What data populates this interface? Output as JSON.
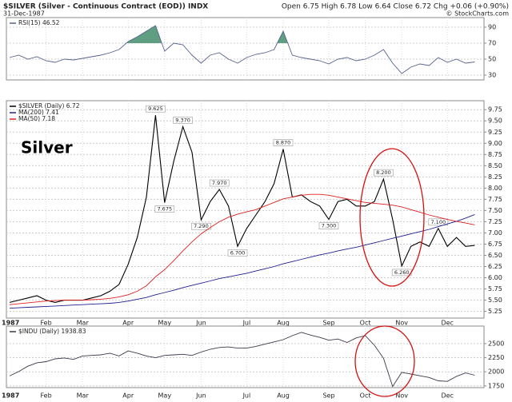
{
  "header": {
    "title": "$SILVER (Silver - Continuous Contract (EOD)) INDX",
    "date": "31-Dec-1987",
    "quote": "Open 6.75 High 6.78 Low 6.64 Close 6.72 Chg +0.06 (+0.90%)",
    "credit": "© StockCharts.com"
  },
  "chart_data": [
    {
      "type": "line",
      "ylim": [
        24,
        102
      ],
      "yticks": [
        90,
        70,
        50,
        30
      ],
      "grid": true,
      "shade_above": 70,
      "shade_color": "#5f9e80",
      "series": [
        {
          "name": "RSI(15) 46.52",
          "color": "#56638f",
          "values": [
            52,
            55,
            50,
            53,
            48,
            46,
            50,
            49,
            51,
            53,
            55,
            58,
            62,
            72,
            78,
            85,
            92,
            60,
            70,
            68,
            55,
            45,
            55,
            58,
            50,
            45,
            52,
            56,
            58,
            62,
            85,
            55,
            52,
            50,
            48,
            44,
            50,
            52,
            48,
            50,
            55,
            62,
            45,
            32,
            40,
            44,
            42,
            52,
            46,
            50,
            45,
            46.52
          ]
        }
      ]
    },
    {
      "type": "line",
      "ylim": [
        5.1,
        9.95
      ],
      "grid": true,
      "annotation": "Silver",
      "yticks": [
        {
          "value": 9.75,
          "label": "9.75"
        },
        {
          "value": 9.5,
          "label": "9.50"
        },
        9.25,
        {
          "value": 9,
          "label": "9.00"
        },
        8.75,
        {
          "value": 8.5,
          "label": "8.50"
        },
        8.25,
        {
          "value": 8,
          "label": "8.00"
        },
        7.75,
        {
          "value": 7.5,
          "label": "7.50"
        },
        7.25,
        {
          "value": 7,
          "label": "7.00"
        },
        6.75,
        {
          "value": 6.5,
          "label": "6.50"
        },
        6.25,
        {
          "value": 6,
          "label": "6.00"
        },
        5.75,
        {
          "value": 5.5,
          "label": "5.50"
        },
        5.25
      ],
      "categories": [
        "1987",
        null,
        null,
        null,
        "Feb",
        null,
        null,
        null,
        "Mar",
        null,
        null,
        null,
        null,
        "Apr",
        null,
        null,
        null,
        "May",
        null,
        null,
        null,
        "Jun",
        null,
        null,
        null,
        null,
        "Jul",
        null,
        null,
        null,
        "Aug",
        null,
        null,
        null,
        null,
        "Sep",
        null,
        null,
        null,
        "Oct",
        null,
        null,
        null,
        "Nov",
        null,
        null,
        null,
        null,
        "Dec",
        null,
        null,
        null
      ],
      "series": [
        {
          "name": "$SILVER (Daily) 6.72",
          "color": "#000000",
          "values": [
            5.45,
            5.5,
            5.55,
            5.6,
            5.5,
            5.45,
            5.5,
            5.5,
            5.5,
            5.55,
            5.6,
            5.7,
            5.85,
            6.3,
            6.9,
            7.8,
            9.625,
            7.675,
            8.6,
            9.37,
            8.8,
            7.29,
            7.7,
            7.97,
            7.6,
            6.7,
            7.1,
            7.4,
            7.7,
            8.1,
            8.87,
            7.8,
            7.85,
            7.7,
            7.6,
            7.3,
            7.7,
            7.75,
            7.6,
            7.6,
            7.7,
            8.2,
            7.3,
            6.26,
            6.7,
            6.8,
            6.7,
            7.1,
            6.7,
            6.9,
            6.7,
            6.72
          ],
          "value_labels": [
            null,
            null,
            null,
            null,
            null,
            null,
            null,
            null,
            null,
            null,
            null,
            null,
            null,
            null,
            null,
            null,
            "9.625",
            "7.675",
            null,
            "9.370",
            null,
            "7.290",
            null,
            "7.970",
            null,
            "6.700",
            null,
            null,
            null,
            null,
            "8.870",
            null,
            null,
            null,
            null,
            "7.300",
            null,
            null,
            null,
            null,
            null,
            "8.200",
            null,
            "6.260",
            null,
            null,
            null,
            "7.100",
            null,
            null,
            null,
            null
          ]
        },
        {
          "name": "MA(200) 7.41",
          "color": "#1f1f8f",
          "values": [
            5.32,
            5.33,
            5.34,
            5.35,
            5.36,
            5.37,
            5.38,
            5.39,
            5.4,
            5.41,
            5.42,
            5.43,
            5.45,
            5.48,
            5.52,
            5.56,
            5.62,
            5.67,
            5.72,
            5.78,
            5.83,
            5.88,
            5.93,
            5.98,
            6.02,
            6.06,
            6.1,
            6.15,
            6.2,
            6.25,
            6.31,
            6.36,
            6.41,
            6.46,
            6.51,
            6.55,
            6.6,
            6.64,
            6.68,
            6.73,
            6.78,
            6.83,
            6.88,
            6.93,
            6.98,
            7.03,
            7.08,
            7.14,
            7.2,
            7.26,
            7.33,
            7.41
          ]
        },
        {
          "name": "MA(50) 7.18",
          "color": "#e02020",
          "values": [
            5.4,
            5.42,
            5.44,
            5.46,
            5.48,
            5.49,
            5.5,
            5.5,
            5.5,
            5.51,
            5.52,
            5.54,
            5.57,
            5.62,
            5.7,
            5.82,
            6.02,
            6.18,
            6.38,
            6.6,
            6.8,
            6.98,
            7.12,
            7.25,
            7.35,
            7.42,
            7.47,
            7.52,
            7.6,
            7.68,
            7.76,
            7.8,
            7.84,
            7.86,
            7.86,
            7.84,
            7.8,
            7.76,
            7.72,
            7.68,
            7.66,
            7.64,
            7.62,
            7.58,
            7.52,
            7.46,
            7.4,
            7.35,
            7.3,
            7.26,
            7.22,
            7.18
          ]
        }
      ]
    },
    {
      "type": "line",
      "ylim": [
        1720,
        2810
      ],
      "yticks": [
        2500,
        2250,
        2000,
        1750
      ],
      "grid": true,
      "categories": [
        "1987",
        null,
        null,
        null,
        "Feb",
        null,
        null,
        null,
        "Mar",
        null,
        null,
        null,
        null,
        "Apr",
        null,
        null,
        null,
        "May",
        null,
        null,
        null,
        "Jun",
        null,
        null,
        null,
        null,
        "Jul",
        null,
        null,
        null,
        "Aug",
        null,
        null,
        null,
        null,
        "Sep",
        null,
        null,
        null,
        "Oct",
        null,
        null,
        null,
        "Nov",
        null,
        null,
        null,
        null,
        "Dec",
        null,
        null,
        null
      ],
      "series": [
        {
          "name": "$INDU (Daily) 1938.83",
          "color": "#3a3a4a",
          "values": [
            1927,
            2005,
            2100,
            2160,
            2180,
            2230,
            2245,
            2220,
            2280,
            2290,
            2300,
            2330,
            2280,
            2370,
            2330,
            2280,
            2250,
            2290,
            2300,
            2310,
            2290,
            2350,
            2400,
            2430,
            2440,
            2420,
            2420,
            2450,
            2490,
            2530,
            2570,
            2640,
            2700,
            2650,
            2610,
            2560,
            2580,
            2520,
            2600,
            2640,
            2470,
            2240,
            1740,
            1990,
            1960,
            1930,
            1900,
            1840,
            1830,
            1920,
            1980,
            1938.83
          ]
        }
      ]
    }
  ]
}
